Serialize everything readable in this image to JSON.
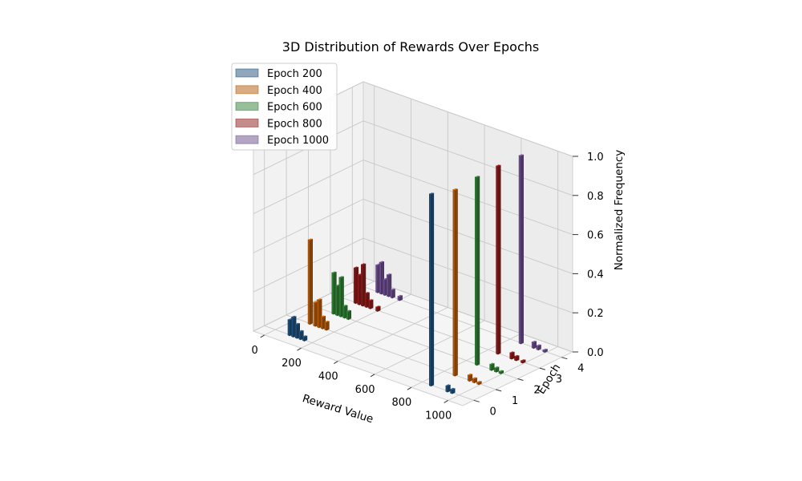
{
  "chart_data": {
    "type": "bar3d",
    "title": "3D Distribution of Rewards Over Epochs",
    "xlabel": "Reward Value",
    "ylabel": "Epoch",
    "zlabel": "Normalized Frequency",
    "x_ticks": [
      "0",
      "200",
      "400",
      "600",
      "800",
      "1000"
    ],
    "y_ticks": [
      "0",
      "1",
      "2",
      "3",
      "4"
    ],
    "z_ticks": [
      "0.0",
      "0.2",
      "0.4",
      "0.6",
      "0.8",
      "1.0"
    ],
    "xlim": [
      -60,
      1080
    ],
    "ylim": [
      -0.5,
      4.5
    ],
    "zlim": [
      0,
      1
    ],
    "grid": true,
    "legend_position": "upper left",
    "series": [
      {
        "name": "Epoch 200",
        "epoch_index": 0,
        "color": "#1f4e79",
        "bins": [
          [
            80,
            0.08
          ],
          [
            100,
            0.1
          ],
          [
            120,
            0.07
          ],
          [
            140,
            0.04
          ],
          [
            160,
            0.02
          ],
          [
            850,
            0.98
          ],
          [
            940,
            0.03
          ],
          [
            965,
            0.02
          ]
        ]
      },
      {
        "name": "Epoch 400",
        "epoch_index": 1,
        "color": "#b35806",
        "bins": [
          [
            70,
            0.43
          ],
          [
            100,
            0.12
          ],
          [
            120,
            0.14
          ],
          [
            140,
            0.06
          ],
          [
            160,
            0.04
          ],
          [
            860,
            0.95
          ],
          [
            940,
            0.03
          ],
          [
            965,
            0.02
          ],
          [
            990,
            0.01
          ]
        ]
      },
      {
        "name": "Epoch 600",
        "epoch_index": 2,
        "color": "#2e7d32",
        "bins": [
          [
            80,
            0.21
          ],
          [
            100,
            0.15
          ],
          [
            120,
            0.2
          ],
          [
            140,
            0.06
          ],
          [
            160,
            0.04
          ],
          [
            860,
            0.96
          ],
          [
            940,
            0.03
          ],
          [
            965,
            0.02
          ],
          [
            990,
            0.01
          ]
        ]
      },
      {
        "name": "Epoch 800",
        "epoch_index": 3,
        "color": "#8b1a1a",
        "bins": [
          [
            80,
            0.18
          ],
          [
            100,
            0.15
          ],
          [
            120,
            0.21
          ],
          [
            140,
            0.07
          ],
          [
            160,
            0.04
          ],
          [
            200,
            0.02
          ],
          [
            855,
            0.96
          ],
          [
            930,
            0.03
          ],
          [
            955,
            0.02
          ],
          [
            990,
            0.01
          ]
        ]
      },
      {
        "name": "Epoch 1000",
        "epoch_index": 4,
        "color": "#6a4c8c",
        "bins": [
          [
            80,
            0.14
          ],
          [
            100,
            0.16
          ],
          [
            120,
            0.08
          ],
          [
            140,
            0.11
          ],
          [
            160,
            0.04
          ],
          [
            200,
            0.02
          ],
          [
            860,
            0.96
          ],
          [
            930,
            0.03
          ],
          [
            955,
            0.02
          ],
          [
            990,
            0.01
          ]
        ]
      }
    ]
  }
}
